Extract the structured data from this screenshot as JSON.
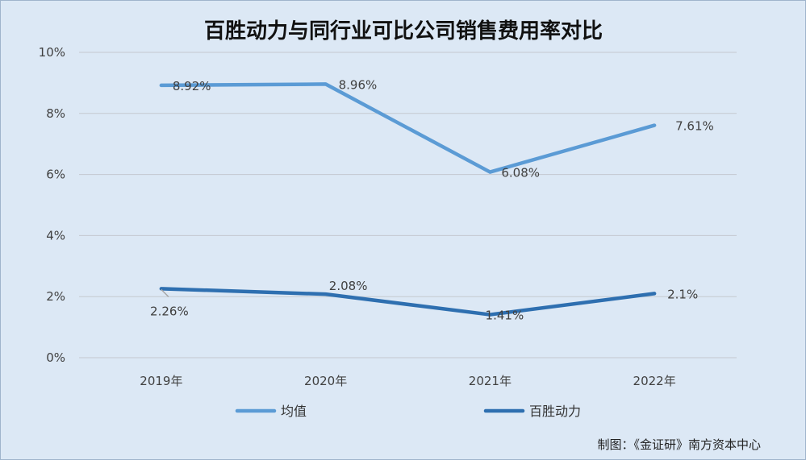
{
  "chart_data": {
    "type": "line",
    "title": "百胜动力与同行业可比公司销售费用率对比",
    "categories": [
      "2019年",
      "2020年",
      "2021年",
      "2022年"
    ],
    "ylim": [
      0,
      10
    ],
    "yticks": [
      "0%",
      "2%",
      "4%",
      "6%",
      "8%",
      "10%"
    ],
    "grid": true,
    "legend_position": "bottom",
    "series": [
      {
        "name": "均值",
        "color": "#5b9bd5",
        "values": [
          8.92,
          8.96,
          6.08,
          7.61
        ],
        "labels": [
          "8.92%",
          "8.96%",
          "6.08%",
          "7.61%"
        ]
      },
      {
        "name": "百胜动力",
        "color": "#2e6fb0",
        "values": [
          2.26,
          2.08,
          1.41,
          2.1
        ],
        "labels": [
          "2.26%",
          "2.08%",
          "1.41%",
          "2.1%"
        ]
      }
    ]
  },
  "credit": "制图：《金证研》南方资本中心"
}
